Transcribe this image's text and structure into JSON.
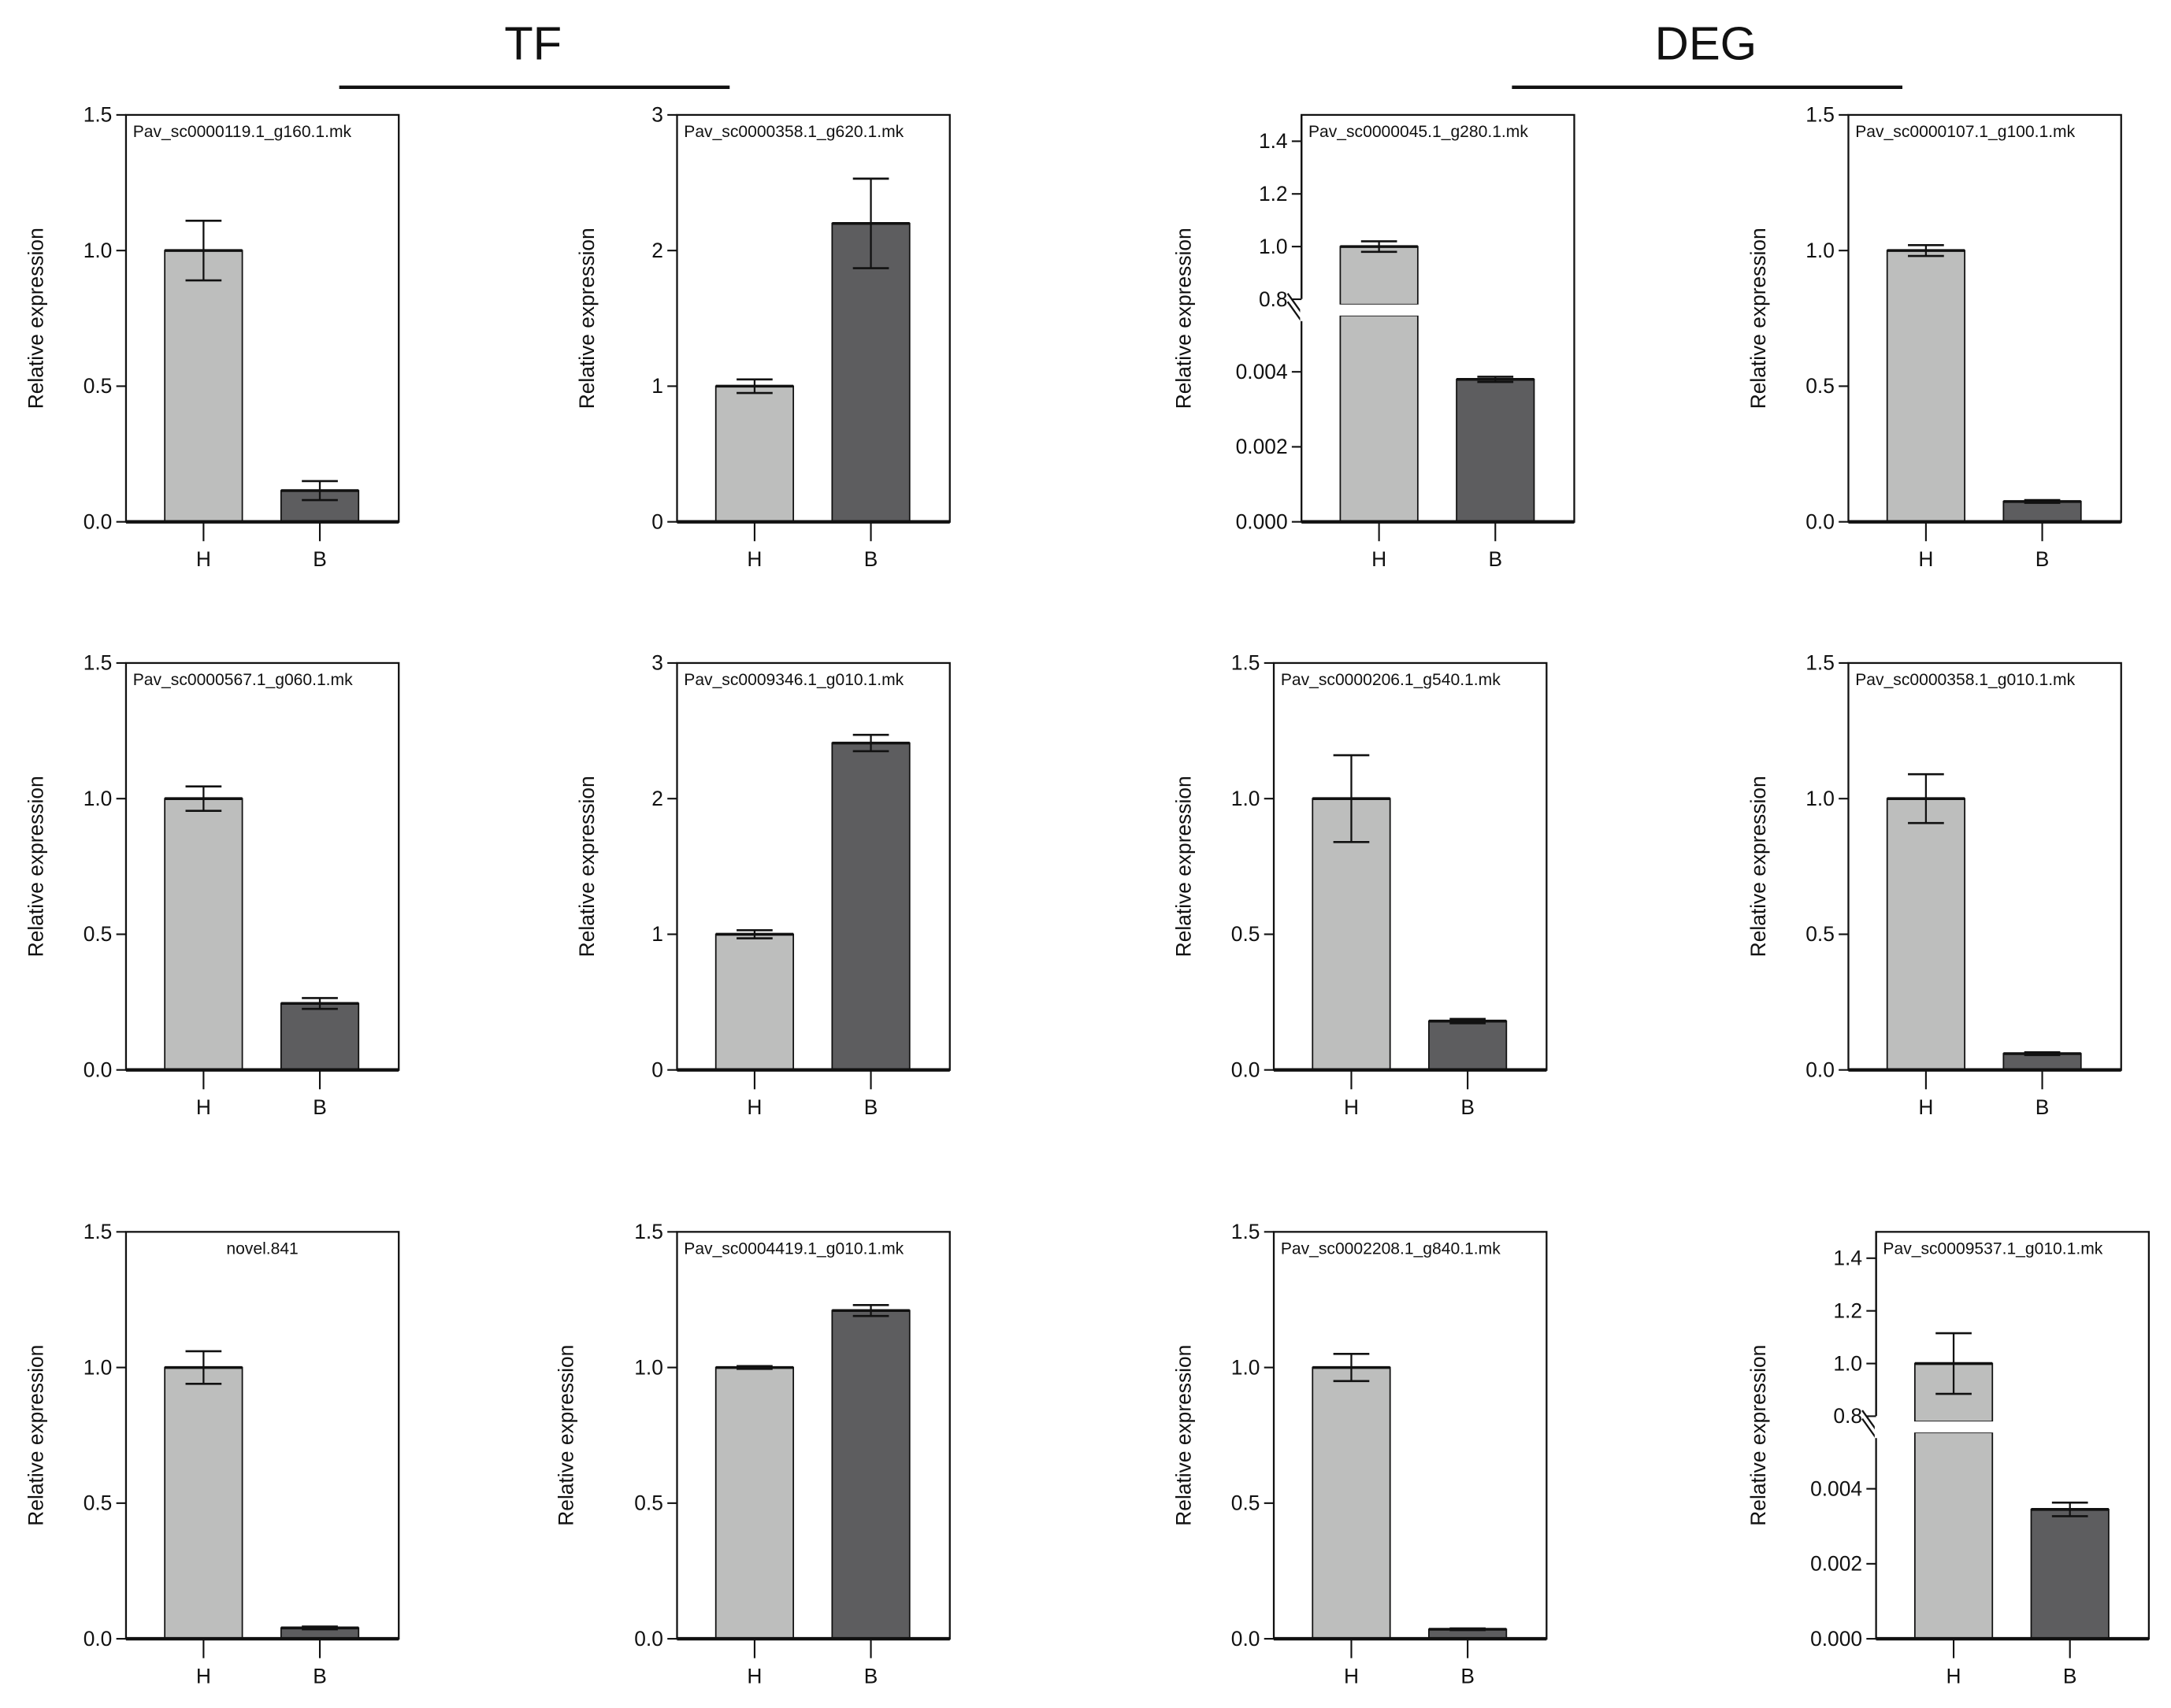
{
  "groups": [
    {
      "label": "TF"
    },
    {
      "label": "DEG"
    }
  ],
  "colors": {
    "H": "#bdbebd",
    "B": "#5d5d5f",
    "axis": "#111111"
  },
  "chart_data": [
    {
      "type": "bar",
      "title": "Pav_sc0000119.1_g160.1.mk",
      "group": "TF",
      "ylabel": "Relative expression",
      "categories": [
        "H",
        "B"
      ],
      "values": [
        1.0,
        0.115
      ],
      "errors": [
        0.11,
        0.035
      ],
      "ylim": [
        0,
        1.5
      ],
      "yticks": [
        0,
        0.5,
        1.0,
        1.5
      ],
      "ytick_labels": [
        "0.0",
        "0.5",
        "1.0",
        "1.5"
      ]
    },
    {
      "type": "bar",
      "title": "Pav_sc0000358.1_g620.1.mk",
      "group": "TF",
      "ylabel": "Relative expression",
      "categories": [
        "H",
        "B"
      ],
      "values": [
        1.0,
        2.2
      ],
      "errors": [
        0.05,
        0.33
      ],
      "ylim": [
        0,
        3
      ],
      "yticks": [
        0,
        1,
        2,
        3
      ],
      "ytick_labels": [
        "0",
        "1",
        "2",
        "3"
      ]
    },
    {
      "type": "bar",
      "title": "Pav_sc0000045.1_g280.1.mk",
      "group": "DEG",
      "ylabel": "Relative expression",
      "categories": [
        "H",
        "B"
      ],
      "values": [
        1.0,
        0.0038
      ],
      "errors": [
        0.02,
        7e-05
      ],
      "broken_axis": {
        "lower": [
          0,
          0.0055
        ],
        "upper": [
          0.78,
          1.5
        ],
        "lower_ticks": [
          0,
          0.002,
          0.004
        ],
        "lower_tick_labels": [
          "0.000",
          "0.002",
          "0.004"
        ],
        "upper_ticks": [
          0.8,
          1.0,
          1.2,
          1.4
        ],
        "upper_tick_labels": [
          "0.8",
          "1.0",
          "1.2",
          "1.4"
        ]
      }
    },
    {
      "type": "bar",
      "title": "Pav_sc0000107.1_g100.1.mk",
      "group": "DEG",
      "ylabel": "Relative expression",
      "categories": [
        "H",
        "B"
      ],
      "values": [
        1.0,
        0.075
      ],
      "errors": [
        0.02,
        0.005
      ],
      "ylim": [
        0,
        1.5
      ],
      "yticks": [
        0,
        0.5,
        1.0,
        1.5
      ],
      "ytick_labels": [
        "0.0",
        "0.5",
        "1.0",
        "1.5"
      ]
    },
    {
      "type": "bar",
      "title": "Pav_sc0000567.1_g060.1.mk",
      "group": "TF",
      "ylabel": "Relative expression",
      "categories": [
        "H",
        "B"
      ],
      "values": [
        1.0,
        0.245
      ],
      "errors": [
        0.045,
        0.02
      ],
      "ylim": [
        0,
        1.5
      ],
      "yticks": [
        0,
        0.5,
        1.0,
        1.5
      ],
      "ytick_labels": [
        "0.0",
        "0.5",
        "1.0",
        "1.5"
      ]
    },
    {
      "type": "bar",
      "title": "Pav_sc0009346.1_g010.1.mk",
      "group": "TF",
      "ylabel": "Relative expression",
      "categories": [
        "H",
        "B"
      ],
      "values": [
        1.0,
        2.41
      ],
      "errors": [
        0.03,
        0.06
      ],
      "ylim": [
        0,
        3
      ],
      "yticks": [
        0,
        1,
        2,
        3
      ],
      "ytick_labels": [
        "0",
        "1",
        "2",
        "3"
      ]
    },
    {
      "type": "bar",
      "title": "Pav_sc0000206.1_g540.1.mk",
      "group": "DEG",
      "ylabel": "Relative expression",
      "categories": [
        "H",
        "B"
      ],
      "values": [
        1.0,
        0.18
      ],
      "errors": [
        0.16,
        0.008
      ],
      "ylim": [
        0,
        1.5
      ],
      "yticks": [
        0,
        0.5,
        1.0,
        1.5
      ],
      "ytick_labels": [
        "0.0",
        "0.5",
        "1.0",
        "1.5"
      ]
    },
    {
      "type": "bar",
      "title": "Pav_sc0000358.1_g010.1.mk",
      "group": "DEG",
      "ylabel": "Relative expression",
      "categories": [
        "H",
        "B"
      ],
      "values": [
        1.0,
        0.06
      ],
      "errors": [
        0.09,
        0.005
      ],
      "ylim": [
        0,
        1.5
      ],
      "yticks": [
        0,
        0.5,
        1.0,
        1.5
      ],
      "ytick_labels": [
        "0.0",
        "0.5",
        "1.0",
        "1.5"
      ]
    },
    {
      "type": "bar",
      "title": "novel.841",
      "group": "TF",
      "ylabel": "Relative expression",
      "categories": [
        "H",
        "B"
      ],
      "values": [
        1.0,
        0.04
      ],
      "errors": [
        0.06,
        0.005
      ],
      "ylim": [
        0,
        1.5
      ],
      "yticks": [
        0,
        0.5,
        1.0,
        1.5
      ],
      "ytick_labels": [
        "0.0",
        "0.5",
        "1.0",
        "1.5"
      ]
    },
    {
      "type": "bar",
      "title": "Pav_sc0004419.1_g010.1.mk",
      "group": "TF",
      "ylabel": "Relative expression",
      "categories": [
        "H",
        "B"
      ],
      "values": [
        1.0,
        1.21
      ],
      "errors": [
        0.005,
        0.02
      ],
      "ylim": [
        0,
        1.5
      ],
      "yticks": [
        0,
        0.5,
        1.0,
        1.5
      ],
      "ytick_labels": [
        "0.0",
        "0.5",
        "1.0",
        "1.5"
      ]
    },
    {
      "type": "bar",
      "title": "Pav_sc0002208.1_g840.1.mk",
      "group": "DEG",
      "ylabel": "Relative expression",
      "categories": [
        "H",
        "B"
      ],
      "values": [
        1.0,
        0.035
      ],
      "errors": [
        0.05,
        0.003
      ],
      "ylim": [
        0,
        1.5
      ],
      "yticks": [
        0,
        0.5,
        1.0,
        1.5
      ],
      "ytick_labels": [
        "0.0",
        "0.5",
        "1.0",
        "1.5"
      ]
    },
    {
      "type": "bar",
      "title": "Pav_sc0009537.1_g010.1.mk",
      "group": "DEG",
      "ylabel": "Relative expression",
      "categories": [
        "H",
        "B"
      ],
      "values": [
        1.0,
        0.00345
      ],
      "errors": [
        0.115,
        0.00018
      ],
      "broken_axis": {
        "lower": [
          0,
          0.0055
        ],
        "upper": [
          0.78,
          1.5
        ],
        "lower_ticks": [
          0,
          0.002,
          0.004
        ],
        "lower_tick_labels": [
          "0.000",
          "0.002",
          "0.004"
        ],
        "upper_ticks": [
          0.8,
          1.0,
          1.2,
          1.4
        ],
        "upper_tick_labels": [
          "0.8",
          "1.0",
          "1.2",
          "1.4"
        ]
      }
    }
  ]
}
